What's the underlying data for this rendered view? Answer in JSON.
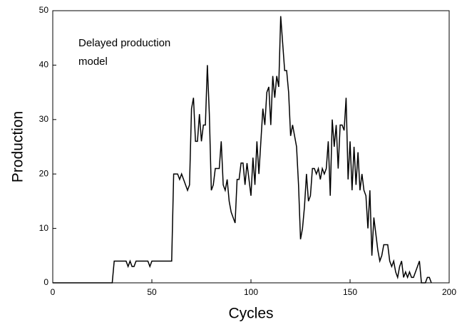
{
  "chart_data": {
    "type": "line",
    "xlabel": "Cycles",
    "ylabel": "Production",
    "annotation": [
      "Delayed production",
      "model"
    ],
    "xlim": [
      0,
      200
    ],
    "ylim": [
      0,
      50
    ],
    "xticks": [
      0,
      50,
      100,
      150,
      200
    ],
    "yticks": [
      0,
      10,
      20,
      30,
      40,
      50
    ],
    "color": "#000000",
    "x": [
      0,
      30,
      31,
      37,
      38,
      39,
      40,
      41,
      42,
      48,
      49,
      50,
      60,
      61,
      63,
      64,
      65,
      67,
      68,
      69,
      70,
      71,
      72,
      73,
      74,
      75,
      76,
      77,
      78,
      79,
      80,
      81,
      82,
      84,
      85,
      86,
      87,
      88,
      89,
      90,
      91,
      92,
      93,
      94,
      95,
      96,
      97,
      98,
      99,
      100,
      101,
      102,
      103,
      104,
      105,
      106,
      107,
      108,
      109,
      110,
      111,
      112,
      113,
      114,
      115,
      116,
      117,
      118,
      119,
      120,
      121,
      122,
      123,
      124,
      125,
      126,
      127,
      128,
      129,
      130,
      131,
      132,
      133,
      134,
      135,
      136,
      137,
      138,
      139,
      140,
      141,
      142,
      143,
      144,
      145,
      146,
      147,
      148,
      149,
      150,
      151,
      152,
      153,
      154,
      155,
      156,
      157,
      158,
      159,
      160,
      161,
      162,
      163,
      164,
      165,
      166,
      167,
      169,
      170,
      171,
      172,
      173,
      174,
      175,
      176,
      177,
      178,
      179,
      180,
      181,
      182,
      183,
      184,
      185,
      186,
      188,
      189,
      190,
      191
    ],
    "values": [
      0,
      0,
      4,
      4,
      3,
      4,
      3,
      3,
      4,
      4,
      3,
      4,
      4,
      20,
      20,
      19,
      20,
      18,
      17,
      18,
      32,
      34,
      26,
      26,
      31,
      26,
      29,
      29,
      40,
      31,
      17,
      18,
      21,
      21,
      26,
      18,
      17,
      19,
      15,
      13,
      12,
      11,
      19,
      19,
      22,
      22,
      18,
      22,
      19,
      16,
      23,
      18,
      26,
      20,
      26,
      32,
      29,
      35,
      36,
      29,
      38,
      34,
      38,
      36,
      49,
      44,
      39,
      39,
      35,
      27,
      29,
      27,
      25,
      18,
      8,
      10,
      14,
      20,
      15,
      16,
      21,
      21,
      20,
      21,
      19,
      21,
      20,
      21,
      26,
      16,
      30,
      25,
      29,
      21,
      29,
      29,
      28,
      34,
      19,
      26,
      17,
      25,
      18,
      24,
      17,
      20,
      17,
      16,
      10,
      17,
      5,
      12,
      9,
      6,
      4,
      5,
      7,
      7,
      4,
      3,
      4,
      2,
      1,
      3,
      4,
      1,
      2,
      1,
      2,
      1,
      1,
      2,
      3,
      4,
      0,
      0,
      1,
      1,
      0
    ]
  }
}
